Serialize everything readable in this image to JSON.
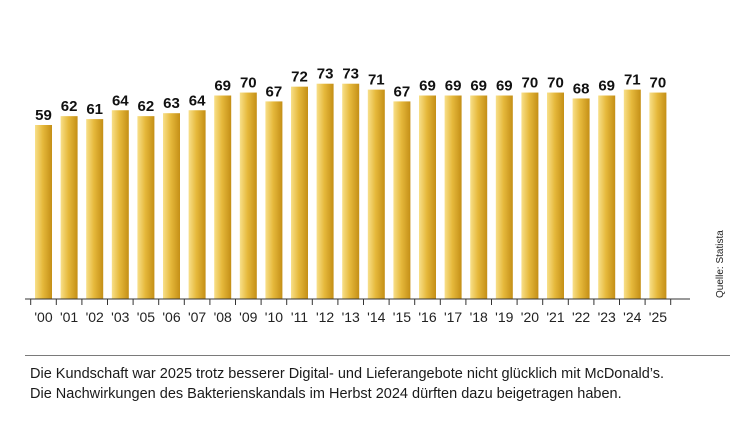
{
  "chart_data": {
    "type": "bar",
    "categories": [
      "'00",
      "'01",
      "'02",
      "'03",
      "'05",
      "'06",
      "'07",
      "'08",
      "'09",
      "'10",
      "'11",
      "'12",
      "'13",
      "'14",
      "'15",
      "'16",
      "'17",
      "'18",
      "'19",
      "'20",
      "'21",
      "'22",
      "'23",
      "'24",
      "'25"
    ],
    "values": [
      59,
      62,
      61,
      64,
      62,
      63,
      64,
      69,
      70,
      67,
      72,
      73,
      73,
      71,
      67,
      69,
      69,
      69,
      69,
      70,
      70,
      68,
      69,
      71,
      70
    ],
    "ylim": [
      0,
      80
    ],
    "title": "",
    "xlabel": "",
    "ylabel": "",
    "grid": false,
    "bar_colors": {
      "light": "#f8e08a",
      "main": "#e6b93c",
      "dark": "#c48f16"
    },
    "source": "Quelle: Statista"
  },
  "caption": {
    "line1": "Die Kundschaft war 2025 trotz besserer Digital- und Lieferangebote nicht glücklich mit McDonald’s.",
    "line2": "Die Nachwirkungen des Bakterienskandals im Herbst 2024 dürften dazu beigetragen haben."
  }
}
